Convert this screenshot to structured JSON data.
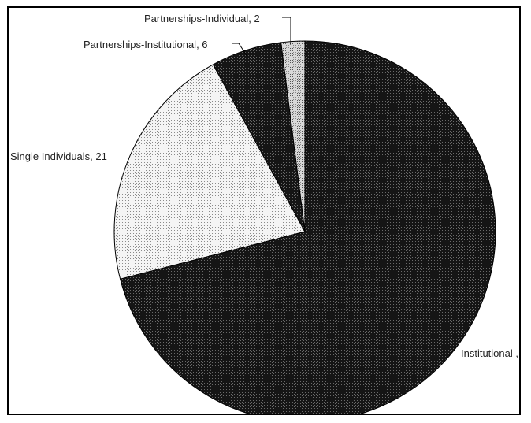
{
  "chart_data": {
    "type": "pie",
    "title": "",
    "start_angle_deg": 0,
    "direction": "clockwise",
    "slices": [
      {
        "label": "Institutional ,",
        "value": 71,
        "display": "Institutional ,",
        "pattern": "dense-black"
      },
      {
        "label": "Single Individuals",
        "value": 21,
        "display": "Single Individuals, 21",
        "pattern": "light-dots"
      },
      {
        "label": "Partnerships-Institutional",
        "value": 6,
        "display": "Partnerships-Institutional, 6",
        "pattern": "dense-black"
      },
      {
        "label": "Partnerships-Individual",
        "value": 2,
        "display": "Partnerships-Individual, 2",
        "pattern": "crosshatch-light"
      }
    ],
    "colors": {
      "dark": "#151515",
      "light": "#f4f4f4",
      "dot": "#8a8a8a",
      "hatch": "#666666",
      "leader": "#000000"
    }
  }
}
